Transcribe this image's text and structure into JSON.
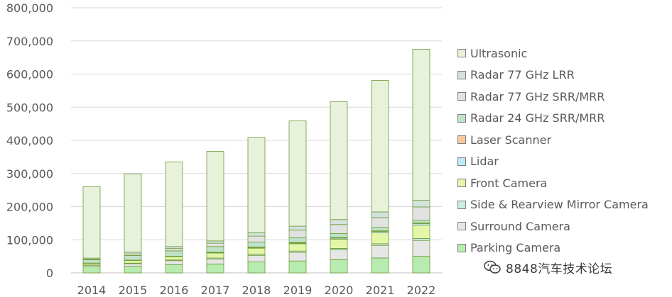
{
  "chart_data": {
    "type": "bar",
    "stacked": true,
    "categories": [
      "2014",
      "2015",
      "2016",
      "2017",
      "2018",
      "2019",
      "2020",
      "2021",
      "2022"
    ],
    "ylim": [
      0,
      800000
    ],
    "yticks": [
      0,
      100000,
      200000,
      300000,
      400000,
      500000,
      600000,
      700000,
      800000
    ],
    "ytick_labels": [
      "0",
      "100,000",
      "200,000",
      "300,000",
      "400,000",
      "500,000",
      "600,000",
      "700,000",
      "800,000"
    ],
    "grid": true,
    "legend_position": "right",
    "series": [
      {
        "name": "Parking Camera",
        "color": "#b7ebb0",
        "values": [
          18000,
          20000,
          25000,
          27000,
          33000,
          36000,
          40000,
          45000,
          50000
        ]
      },
      {
        "name": "Surround Camera",
        "color": "#e6e6e6",
        "values": [
          5000,
          8000,
          12000,
          15000,
          20000,
          26000,
          30000,
          38000,
          48000
        ]
      },
      {
        "name": "Side & Rearview Mirror Camera",
        "color": "#cdece6",
        "values": [
          1000,
          1500,
          2000,
          3000,
          3500,
          4000,
          4000,
          5000,
          6000
        ]
      },
      {
        "name": "Front Camera",
        "color": "#e4f7a8",
        "values": [
          5000,
          8000,
          10000,
          15000,
          18000,
          22000,
          28000,
          33000,
          40000
        ]
      },
      {
        "name": "Lidar",
        "color": "#bfe9f5",
        "values": [
          200,
          300,
          500,
          1000,
          1500,
          2000,
          3000,
          4000,
          5000
        ]
      },
      {
        "name": "Laser Scanner",
        "color": "#f8c99d",
        "values": [
          500,
          800,
          1000,
          1500,
          2000,
          2000,
          2000,
          2000,
          2000
        ]
      },
      {
        "name": "Radar 24 GHz SRR/MRR",
        "color": "#bfe3c8",
        "values": [
          10000,
          14000,
          16000,
          17000,
          15000,
          14000,
          12000,
          10000,
          8000
        ]
      },
      {
        "name": "Radar 77 GHz SRR/MRR",
        "color": "#e2e2e2",
        "values": [
          2000,
          5000,
          7000,
          10000,
          18000,
          23000,
          27000,
          30000,
          40000
        ]
      },
      {
        "name": "Radar 77 GHz LRR",
        "color": "#d2e2dc",
        "values": [
          3000,
          5000,
          6000,
          7000,
          10000,
          12000,
          15000,
          17000,
          20000
        ]
      },
      {
        "name": "Ultrasonic",
        "color": "#e8f1da",
        "values": [
          215300,
          236400,
          255500,
          270500,
          288000,
          318000,
          356000,
          397000,
          456000
        ]
      }
    ]
  },
  "watermark": {
    "text": "8848汽车技术论坛"
  }
}
